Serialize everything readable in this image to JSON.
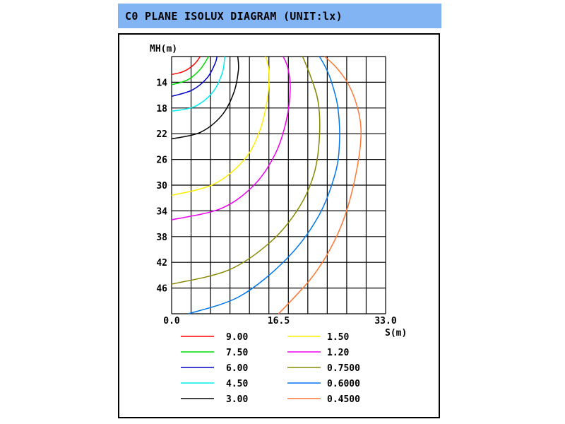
{
  "header": {
    "title": "C0 PLANE ISOLUX DIAGRAM (UNIT:lx)"
  },
  "chart_data": {
    "type": "line",
    "title": "C0 PLANE ISOLUX DIAGRAM (UNIT:lx)",
    "xlabel": "S(m)",
    "ylabel": "MH(m)",
    "xlim": [
      0,
      33
    ],
    "ylim": [
      10,
      50
    ],
    "y_inverted": true,
    "grid": true,
    "x_ticks": [
      "0.0",
      "16.5",
      "33.0"
    ],
    "y_ticks": [
      "14",
      "18",
      "22",
      "26",
      "30",
      "34",
      "38",
      "42",
      "46"
    ],
    "legend_position": "bottom",
    "series": [
      {
        "name": "9.00",
        "color": "#ff0000",
        "points": [
          [
            0,
            12.8
          ],
          [
            1.9,
            12.3
          ],
          [
            3.5,
            11.2
          ],
          [
            4.4,
            10.0
          ]
        ]
      },
      {
        "name": "7.50",
        "color": "#00dd00",
        "points": [
          [
            0,
            14.4
          ],
          [
            2.5,
            13.6
          ],
          [
            4.4,
            12.0
          ],
          [
            5.7,
            10.0
          ]
        ]
      },
      {
        "name": "6.00",
        "color": "#0000cc",
        "points": [
          [
            0,
            16.2
          ],
          [
            3.2,
            15.2
          ],
          [
            5.5,
            13.3
          ],
          [
            6.7,
            11.1
          ],
          [
            7.0,
            10.0
          ]
        ]
      },
      {
        "name": "4.50",
        "color": "#00eeee",
        "points": [
          [
            0,
            18.5
          ],
          [
            3.5,
            17.8
          ],
          [
            6.3,
            15.6
          ],
          [
            7.8,
            12.6
          ],
          [
            8.2,
            10.0
          ]
        ]
      },
      {
        "name": "3.00",
        "color": "#000000",
        "points": [
          [
            0,
            22.8
          ],
          [
            4.4,
            21.8
          ],
          [
            7.7,
            19.2
          ],
          [
            9.6,
            15.6
          ],
          [
            10.3,
            12.1
          ],
          [
            10.2,
            10.0
          ]
        ]
      },
      {
        "name": "1.50",
        "color": "#ffee00",
        "points": [
          [
            0,
            31.6
          ],
          [
            6.6,
            29.8
          ],
          [
            11.3,
            25.9
          ],
          [
            13.6,
            21.5
          ],
          [
            14.8,
            16.4
          ],
          [
            15.0,
            12.2
          ],
          [
            14.5,
            10.0
          ]
        ]
      },
      {
        "name": "1.20",
        "color": "#ee00ee",
        "points": [
          [
            0,
            35.4
          ],
          [
            7.7,
            33.6
          ],
          [
            12.8,
            29.9
          ],
          [
            16.0,
            25.1
          ],
          [
            17.7,
            19.9
          ],
          [
            18.3,
            14.9
          ],
          [
            17.9,
            11.7
          ],
          [
            17.2,
            10.0
          ]
        ]
      },
      {
        "name": "0.7500",
        "color": "#888800",
        "points": [
          [
            0,
            45.4
          ],
          [
            8.8,
            43.2
          ],
          [
            15.4,
            38.7
          ],
          [
            19.7,
            33.4
          ],
          [
            22.0,
            28.1
          ],
          [
            22.8,
            22.5
          ],
          [
            22.6,
            17.1
          ],
          [
            21.4,
            13.0
          ],
          [
            20.2,
            10.0
          ]
        ]
      },
      {
        "name": "0.6000",
        "color": "#0077ee",
        "points": [
          [
            2.6,
            50.0
          ],
          [
            10.5,
            47.3
          ],
          [
            17.7,
            41.5
          ],
          [
            22.5,
            35.1
          ],
          [
            25.2,
            28.3
          ],
          [
            25.9,
            23.0
          ],
          [
            25.6,
            17.7
          ],
          [
            24.6,
            13.8
          ],
          [
            23.7,
            11.6
          ],
          [
            22.8,
            10.0
          ]
        ]
      },
      {
        "name": "0.4500",
        "color": "#ff7733",
        "points": [
          [
            16.5,
            50.0
          ],
          [
            21.6,
            44.4
          ],
          [
            25.0,
            38.9
          ],
          [
            27.2,
            33.3
          ],
          [
            28.8,
            26.2
          ],
          [
            29.2,
            21.2
          ],
          [
            28.5,
            17.4
          ],
          [
            27.2,
            14.2
          ],
          [
            25.4,
            11.7
          ],
          [
            23.6,
            10.0
          ]
        ]
      }
    ]
  }
}
